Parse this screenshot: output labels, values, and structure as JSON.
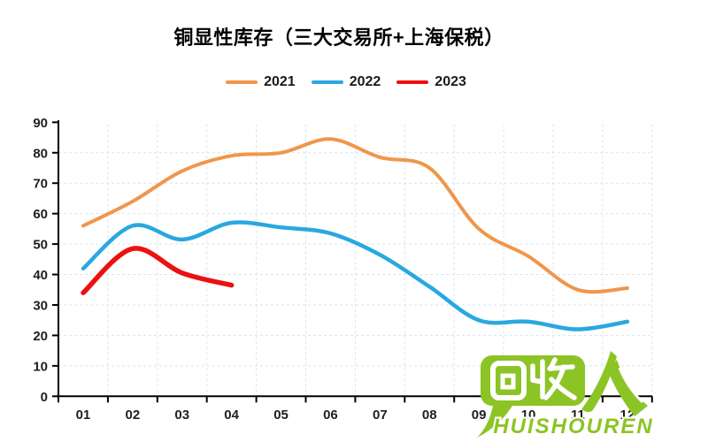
{
  "chart_data": {
    "type": "line",
    "title": "铜显性库存（三大交易所+上海保税）",
    "xlabel": "",
    "ylabel": "",
    "categories": [
      "01",
      "02",
      "03",
      "04",
      "05",
      "06",
      "07",
      "08",
      "09",
      "10",
      "11",
      "12"
    ],
    "series": [
      {
        "name": "2021",
        "color": "#F0964A",
        "values": [
          56,
          64,
          74,
          79,
          80,
          84.5,
          78.5,
          75,
          55,
          46,
          35,
          35.5
        ]
      },
      {
        "name": "2022",
        "color": "#29A8E0",
        "values": [
          42,
          56,
          51.5,
          57,
          55.5,
          53.5,
          46.5,
          36,
          25,
          24.5,
          22,
          24.5
        ]
      },
      {
        "name": "2023",
        "color": "#EC1111",
        "values": [
          34,
          48.5,
          40.5,
          36.5,
          null,
          null,
          null,
          null,
          null,
          null,
          null,
          null
        ]
      }
    ],
    "ylim": [
      0,
      90
    ],
    "ytick_step": 10,
    "grid": true,
    "gridline_color": "#D8E3F3",
    "axis_color": "#000000",
    "legend_position": "top"
  },
  "watermark": {
    "bubble_text": "回收",
    "person_glyph": "人",
    "subtitle": "HUISHOUREN",
    "color": "#8CC425"
  }
}
